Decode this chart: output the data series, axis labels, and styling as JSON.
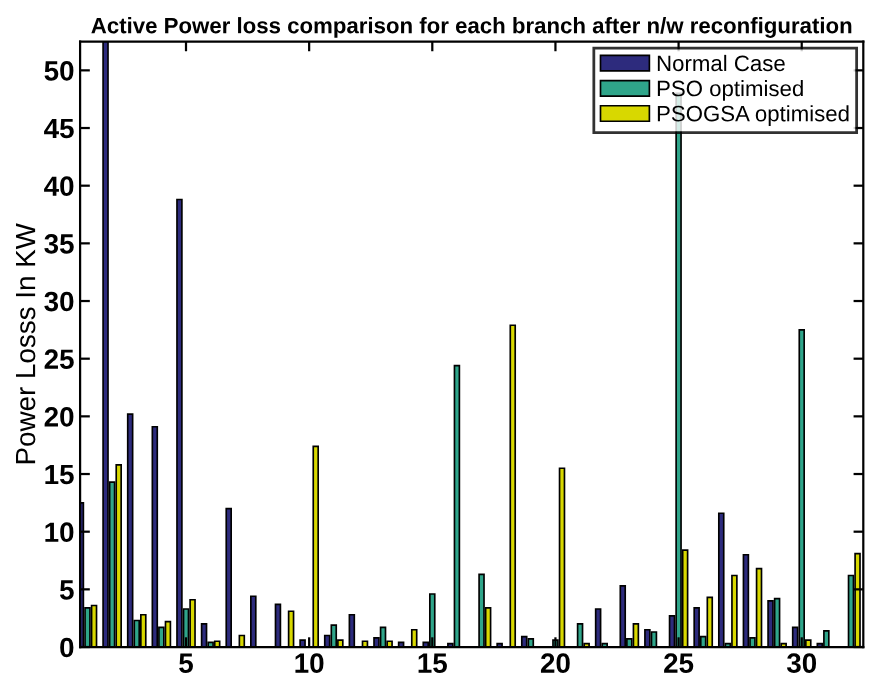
{
  "chart_data": {
    "type": "bar",
    "title": "Active Power loss comparison for each branch after n/w reconfiguration",
    "ylabel": "Power Losss In KW",
    "x": [
      1,
      2,
      3,
      4,
      5,
      6,
      7,
      8,
      9,
      10,
      11,
      12,
      13,
      14,
      15,
      16,
      17,
      18,
      19,
      20,
      21,
      22,
      23,
      24,
      25,
      26,
      27,
      28,
      29,
      30,
      31,
      32
    ],
    "series": [
      {
        "name": "Normal Case",
        "color": "#2d2b7d",
        "values": [
          12.5,
          52.5,
          20.2,
          19.1,
          38.8,
          2.0,
          12.0,
          4.4,
          3.7,
          0.6,
          1.0,
          2.8,
          0.8,
          0.4,
          0.4,
          0.3,
          0,
          0.3,
          0.9,
          0,
          0,
          3.3,
          5.3,
          1.5,
          2.7,
          3.4,
          11.6,
          8.0,
          4.0,
          1.7,
          0.3,
          0
        ]
      },
      {
        "name": "PSO optimised",
        "color": "#2fa58a",
        "values": [
          3.4,
          14.3,
          2.3,
          1.7,
          3.3,
          0.4,
          0,
          0,
          0,
          0,
          1.9,
          0,
          1.7,
          0,
          4.6,
          24.4,
          6.3,
          0,
          0.7,
          0.6,
          2.0,
          0.3,
          0.7,
          1.3,
          48,
          0.9,
          0.3,
          0.8,
          4.2,
          27.5,
          1.4,
          6.2
        ]
      },
      {
        "name": "PSOGSA optimised",
        "color": "#d8d800",
        "values": [
          3.6,
          15.8,
          2.8,
          2.2,
          4.1,
          0.5,
          1.0,
          0,
          3.1,
          17.4,
          0.6,
          0.5,
          0.5,
          1.5,
          0,
          0,
          3.4,
          27.9,
          0,
          15.5,
          0.3,
          0,
          2.0,
          0,
          8.4,
          4.3,
          6.2,
          6.8,
          0.3,
          0.6,
          0,
          8.1
        ]
      }
    ],
    "xlim": [
      0.7,
      32.5
    ],
    "ylim": [
      0,
      52.5
    ],
    "xticks": [
      5,
      10,
      15,
      20,
      25,
      30
    ],
    "yticks": [
      0,
      5,
      10,
      15,
      20,
      25,
      30,
      35,
      40,
      45,
      50
    ],
    "grid": false,
    "legend": "top right"
  }
}
